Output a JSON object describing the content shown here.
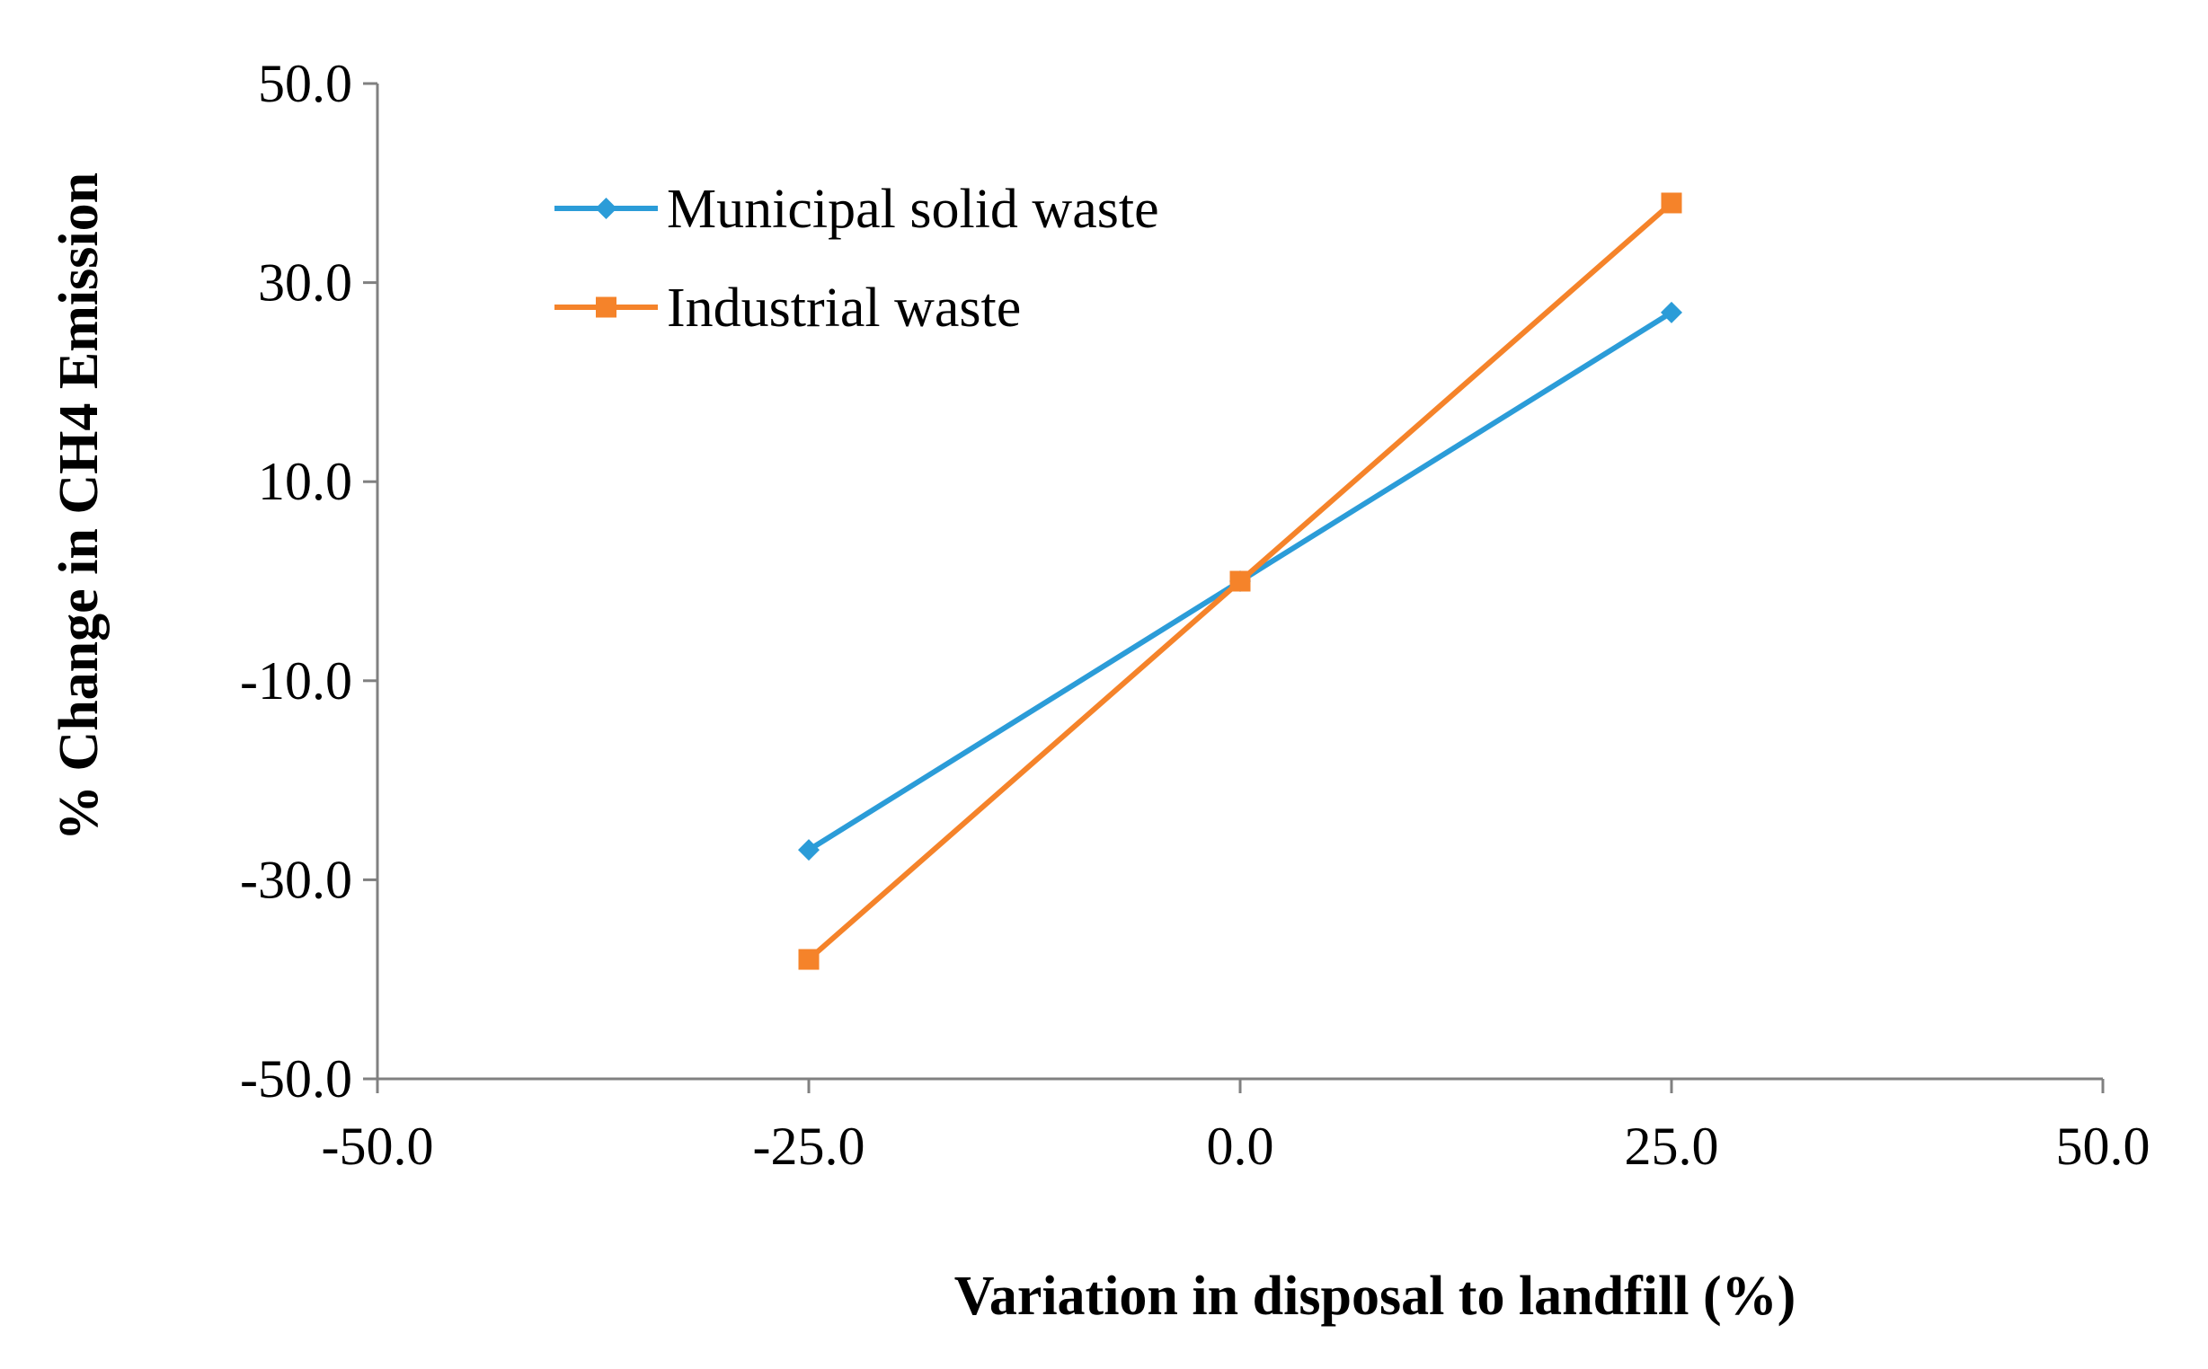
{
  "chart_data": {
    "type": "line",
    "title": "",
    "xlabel": "Variation in disposal to landfill (%)",
    "ylabel": "% Change in CH4 Emission",
    "xlim": [
      -50,
      50
    ],
    "ylim": [
      -50,
      50
    ],
    "x_ticks": [
      -50,
      -25,
      0,
      25,
      50
    ],
    "x_tick_labels": [
      "-50.0",
      "-25.0",
      "0.0",
      "25.0",
      "50.0"
    ],
    "y_ticks": [
      -50,
      -30,
      -10,
      10,
      30,
      50
    ],
    "y_tick_labels": [
      "-50.0",
      "-30.0",
      "-10.0",
      "10.0",
      "30.0",
      "50.0"
    ],
    "grid": false,
    "legend_position": "top-left",
    "x": [
      -25,
      0,
      25
    ],
    "series": [
      {
        "name": "Municipal solid waste",
        "values": [
          -27,
          0,
          27
        ],
        "color": "#2b9cd8",
        "marker": "diamond"
      },
      {
        "name": "Industrial waste",
        "values": [
          -38,
          0,
          38
        ],
        "color": "#f5832a",
        "marker": "square"
      }
    ]
  }
}
